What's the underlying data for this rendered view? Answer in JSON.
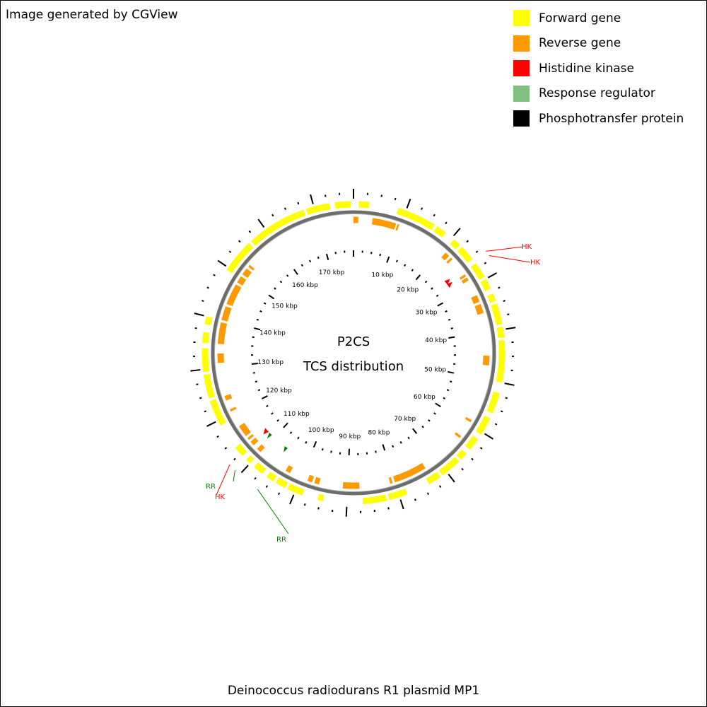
{
  "header": {
    "credit": "Image generated by CGView"
  },
  "legend": [
    {
      "label": "Forward gene",
      "color": "#ffff00"
    },
    {
      "label": "Reverse gene",
      "color": "#ff9900"
    },
    {
      "label": "Histidine kinase",
      "color": "#ff0000"
    },
    {
      "label": "Response regulator",
      "color": "#80c080"
    },
    {
      "label": "Phosphotransfer protein",
      "color": "#000000"
    }
  ],
  "map": {
    "center_title": "P2CS",
    "center_subtitle": "TCS distribution",
    "plasmid_length_kbp": 177.5,
    "tick_labels": [
      "10 kbp",
      "20 kbp",
      "30 kbp",
      "40 kbp",
      "50 kbp",
      "60 kbp",
      "70 kbp",
      "80 kbp",
      "90 kbp",
      "100 kbp",
      "110 kbp",
      "120 kbp",
      "130 kbp",
      "140 kbp",
      "150 kbp",
      "160 kbp",
      "170 kbp"
    ],
    "forward_genes_kbp": [
      [
        1,
        3
      ],
      [
        8.5,
        16
      ],
      [
        16.5,
        18.5
      ],
      [
        20.5,
        22
      ],
      [
        22.5,
        25.5
      ],
      [
        26.5,
        29.5
      ],
      [
        30,
        32
      ],
      [
        33,
        34.5
      ],
      [
        35,
        39
      ],
      [
        39.5,
        41.5
      ],
      [
        42,
        50
      ],
      [
        52,
        56
      ],
      [
        57,
        60.5
      ],
      [
        61.5,
        64
      ],
      [
        65,
        66.5
      ],
      [
        67,
        71
      ],
      [
        71.5,
        74
      ],
      [
        78.5,
        82
      ],
      [
        82.5,
        87
      ],
      [
        94.5,
        95.5
      ],
      [
        98.5,
        101.5
      ],
      [
        102,
        104
      ],
      [
        104.5,
        106
      ],
      [
        107,
        109
      ],
      [
        110,
        111
      ],
      [
        112,
        114
      ],
      [
        119,
        124
      ],
      [
        124.5,
        129
      ],
      [
        129.5,
        134
      ],
      [
        135,
        137
      ],
      [
        138.5,
        140
      ],
      [
        149.5,
        156
      ],
      [
        156.5,
        168
      ],
      [
        168.5,
        173
      ],
      [
        174,
        177
      ]
    ],
    "reverse_genes_kbp": [
      [
        0,
        1
      ],
      [
        4,
        9
      ],
      [
        9.3,
        9.7
      ],
      [
        21,
        22
      ],
      [
        22.5,
        23
      ],
      [
        27,
        27.5
      ],
      [
        27.8,
        28.5
      ],
      [
        32,
        33.5
      ],
      [
        34,
        36
      ],
      [
        45,
        47
      ],
      [
        59,
        59.5
      ],
      [
        63,
        63.5
      ],
      [
        73,
        80
      ],
      [
        80.5,
        81
      ],
      [
        87.5,
        91
      ],
      [
        96,
        97
      ],
      [
        97.5,
        98.5
      ],
      [
        102.5,
        103.5
      ],
      [
        110,
        111
      ],
      [
        112,
        113
      ],
      [
        113.5,
        114
      ],
      [
        114.5,
        117
      ],
      [
        120.5,
        121
      ],
      [
        123,
        124
      ],
      [
        131,
        133
      ],
      [
        135,
        139.5
      ],
      [
        140,
        143
      ],
      [
        143.5,
        148
      ],
      [
        148.5,
        150
      ],
      [
        150.5,
        152
      ],
      [
        152.5,
        153
      ]
    ],
    "tcs_features": [
      {
        "type": "HK",
        "start_kbp": 25.5,
        "end_kbp": 26.3,
        "label": "HK"
      },
      {
        "type": "HK",
        "start_kbp": 26.4,
        "end_kbp": 27.2,
        "label": "HK"
      },
      {
        "type": "RR",
        "start_kbp": 105.8,
        "end_kbp": 106.3,
        "label": "RR"
      },
      {
        "type": "RR",
        "start_kbp": 110.8,
        "end_kbp": 111.3,
        "label": "RR"
      },
      {
        "type": "HK",
        "start_kbp": 111.9,
        "end_kbp": 112.8,
        "label": "HK"
      }
    ]
  },
  "footer": {
    "title": "Deinococcus radiodurans R1 plasmid MP1"
  }
}
